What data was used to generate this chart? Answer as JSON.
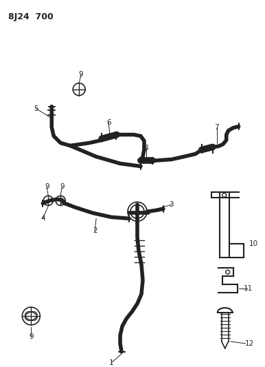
{
  "title": "8J24  700",
  "bg_color": "#ffffff",
  "line_color": "#222222",
  "title_fontsize": 9,
  "label_fontsize": 7.5,
  "figsize": [
    3.86,
    5.33
  ],
  "dpi": 100
}
